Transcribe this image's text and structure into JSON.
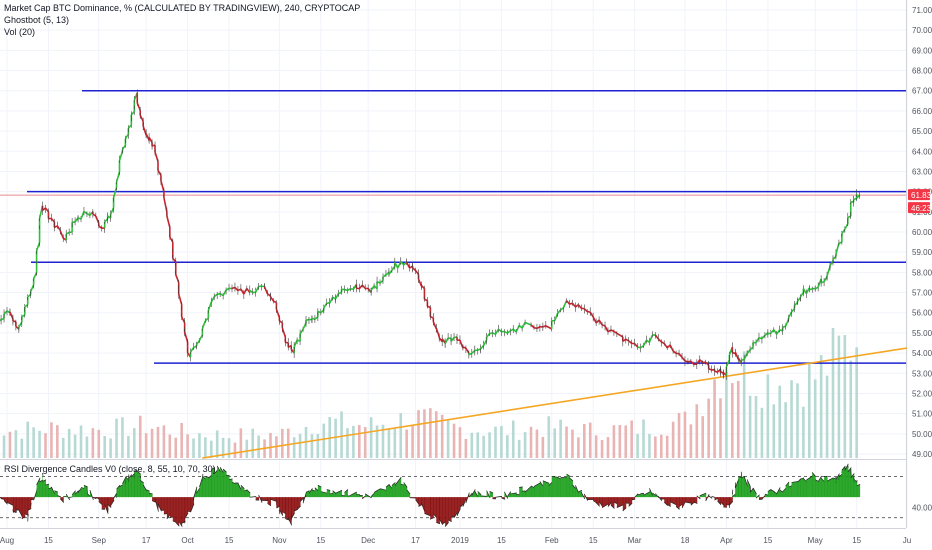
{
  "legend": {
    "title": "Market Cap BTC Dominance, % (CALCULATED BY TRADINGVIEW), 240, CRYPTOCAP",
    "indicator1": "Ghostbot (5, 13)",
    "indicator2": "Vol (20)",
    "rsi": "RSI Divergence Candles V0 (close, 8, 55, 10, 70, 30)"
  },
  "price_tags": {
    "last": "61.83",
    "countdown": "46:23",
    "colors": {
      "last": "#f23645",
      "countdown": "#f23645"
    }
  },
  "colors": {
    "level_line": "#1e22d2",
    "trend_line": "#f5a623",
    "bull": "#2fbf3a",
    "bear": "#c4252e",
    "vol_bull": "#b7d9d4",
    "vol_bear": "#e8b5b4",
    "rsi_bull": "#1a9e1a",
    "rsi_bear": "#8b0c0c"
  },
  "chart_data": [
    {
      "type": "line",
      "y_axis_ticks": [
        "71.00",
        "70.00",
        "69.00",
        "68.00",
        "67.00",
        "66.00",
        "65.00",
        "64.00",
        "63.00",
        "62.00",
        "61.00",
        "60.00",
        "59.00",
        "58.00",
        "57.00",
        "56.00",
        "55.00",
        "54.00",
        "53.00",
        "52.00",
        "51.00",
        "50.00",
        "49.00"
      ],
      "ylim": [
        48.8,
        71.2
      ],
      "x_axis_ticks": [
        "Aug",
        "15",
        "Sep",
        "17",
        "Oct",
        "15",
        "Nov",
        "15",
        "Dec",
        "17",
        "2019",
        "15",
        "Feb",
        "15",
        "Mar",
        "18",
        "Apr",
        "15",
        "May",
        "15",
        "Ju"
      ],
      "x_tick_dates": [
        "2018-08-01",
        "2018-08-15",
        "2018-09-01",
        "2018-09-17",
        "2018-10-01",
        "2018-10-15",
        "2018-11-01",
        "2018-11-15",
        "2018-12-01",
        "2018-12-17",
        "2019-01-01",
        "2019-01-15",
        "2019-02-01",
        "2019-02-15",
        "2019-03-01",
        "2019-03-18",
        "2019-04-01",
        "2019-04-15",
        "2019-05-01",
        "2019-05-15",
        "2019-06-01"
      ],
      "series": [
        {
          "values": [
            [
              "2018-07-25",
              55.0
            ],
            [
              "2018-07-29",
              55.5
            ],
            [
              "2018-08-02",
              56.0
            ],
            [
              "2018-08-05",
              55.2
            ],
            [
              "2018-08-08",
              56.4
            ],
            [
              "2018-08-11",
              58.0
            ],
            [
              "2018-08-13",
              61.3
            ],
            [
              "2018-08-17",
              60.5
            ],
            [
              "2018-08-21",
              59.6
            ],
            [
              "2018-08-25",
              60.7
            ],
            [
              "2018-08-30",
              61.0
            ],
            [
              "2018-09-03",
              60.2
            ],
            [
              "2018-09-06",
              61.2
            ],
            [
              "2018-09-09",
              64.0
            ],
            [
              "2018-09-12",
              65.3
            ],
            [
              "2018-09-14",
              66.9
            ],
            [
              "2018-09-17",
              64.8
            ],
            [
              "2018-09-20",
              64.3
            ],
            [
              "2018-09-23",
              62.0
            ],
            [
              "2018-09-26",
              59.5
            ],
            [
              "2018-09-28",
              57.5
            ],
            [
              "2018-09-30",
              55.5
            ],
            [
              "2018-10-02",
              53.8
            ],
            [
              "2018-10-06",
              54.9
            ],
            [
              "2018-10-10",
              56.8
            ],
            [
              "2018-10-16",
              57.2
            ],
            [
              "2018-10-22",
              57.0
            ],
            [
              "2018-10-27",
              57.3
            ],
            [
              "2018-10-31",
              56.5
            ],
            [
              "2018-11-03",
              54.8
            ],
            [
              "2018-11-06",
              54.0
            ],
            [
              "2018-11-10",
              55.5
            ],
            [
              "2018-11-14",
              55.8
            ],
            [
              "2018-11-18",
              56.5
            ],
            [
              "2018-11-22",
              57.0
            ],
            [
              "2018-11-27",
              57.4
            ],
            [
              "2018-12-02",
              57.0
            ],
            [
              "2018-12-06",
              57.6
            ],
            [
              "2018-12-10",
              58.3
            ],
            [
              "2018-12-14",
              58.5
            ],
            [
              "2018-12-18",
              57.9
            ],
            [
              "2018-12-21",
              56.6
            ],
            [
              "2018-12-24",
              55.2
            ],
            [
              "2018-12-27",
              54.5
            ],
            [
              "2018-12-31",
              54.8
            ],
            [
              "2019-01-04",
              54.0
            ],
            [
              "2019-01-08",
              54.2
            ],
            [
              "2019-01-12",
              55.0
            ],
            [
              "2019-01-18",
              55.1
            ],
            [
              "2019-01-25",
              55.4
            ],
            [
              "2019-02-01",
              55.2
            ],
            [
              "2019-02-06",
              56.6
            ],
            [
              "2019-02-12",
              56.2
            ],
            [
              "2019-02-18",
              55.4
            ],
            [
              "2019-02-25",
              54.8
            ],
            [
              "2019-03-02",
              54.3
            ],
            [
              "2019-03-08",
              54.9
            ],
            [
              "2019-03-14",
              54.1
            ],
            [
              "2019-03-20",
              53.6
            ],
            [
              "2019-03-26",
              53.4
            ],
            [
              "2019-03-30",
              53.2
            ],
            [
              "2019-04-01",
              52.9
            ],
            [
              "2019-04-03",
              54.3
            ],
            [
              "2019-04-06",
              53.5
            ],
            [
              "2019-04-10",
              54.3
            ],
            [
              "2019-04-15",
              55.0
            ],
            [
              "2019-04-20",
              55.1
            ],
            [
              "2019-04-24",
              56.2
            ],
            [
              "2019-04-27",
              57.0
            ],
            [
              "2019-05-01",
              57.2
            ],
            [
              "2019-05-05",
              57.8
            ],
            [
              "2019-05-08",
              58.8
            ],
            [
              "2019-05-12",
              60.4
            ],
            [
              "2019-05-14",
              61.5
            ],
            [
              "2019-05-16",
              61.83
            ]
          ]
        }
      ],
      "horizontal_levels": [
        67.0,
        62.0,
        58.5,
        53.5
      ],
      "trend_line": [
        [
          "2018-10-06",
          48.8
        ],
        [
          "2019-06-01",
          54.25
        ]
      ]
    },
    {
      "type": "bar",
      "name": "Vol (20)",
      "relative_levels": [
        [
          "2018-07-25",
          0.25
        ],
        [
          "2018-08-01",
          0.22
        ],
        [
          "2018-08-15",
          0.24
        ],
        [
          "2018-09-01",
          0.23
        ],
        [
          "2018-09-17",
          0.26
        ],
        [
          "2018-10-01",
          0.2
        ],
        [
          "2018-10-15",
          0.18
        ],
        [
          "2018-11-01",
          0.19
        ],
        [
          "2018-11-15",
          0.3
        ],
        [
          "2018-12-01",
          0.26
        ],
        [
          "2018-12-17",
          0.33
        ],
        [
          "2019-01-01",
          0.24
        ],
        [
          "2019-01-15",
          0.22
        ],
        [
          "2019-02-01",
          0.25
        ],
        [
          "2019-02-15",
          0.22
        ],
        [
          "2019-03-01",
          0.24
        ],
        [
          "2019-03-18",
          0.3
        ],
        [
          "2019-04-01",
          0.78
        ],
        [
          "2019-04-15",
          0.62
        ],
        [
          "2019-05-01",
          0.66
        ],
        [
          "2019-05-15",
          1.0
        ]
      ]
    },
    {
      "type": "area",
      "name": "RSI Divergence Candles V0",
      "y_axis_ticks": [
        "40.00"
      ],
      "levels": [
        70,
        30
      ],
      "ylim": [
        20,
        85
      ],
      "values": [
        [
          "2018-07-25",
          62
        ],
        [
          "2018-08-03",
          40
        ],
        [
          "2018-08-08",
          30
        ],
        [
          "2018-08-13",
          70
        ],
        [
          "2018-08-20",
          48
        ],
        [
          "2018-08-28",
          60
        ],
        [
          "2018-09-04",
          36
        ],
        [
          "2018-09-10",
          66
        ],
        [
          "2018-09-15",
          74
        ],
        [
          "2018-09-22",
          35
        ],
        [
          "2018-09-30",
          22
        ],
        [
          "2018-10-06",
          68
        ],
        [
          "2018-10-12",
          78
        ],
        [
          "2018-10-20",
          55
        ],
        [
          "2018-10-31",
          44
        ],
        [
          "2018-11-05",
          26
        ],
        [
          "2018-11-12",
          60
        ],
        [
          "2018-11-22",
          55
        ],
        [
          "2018-12-02",
          50
        ],
        [
          "2018-12-12",
          66
        ],
        [
          "2018-12-22",
          32
        ],
        [
          "2018-12-28",
          24
        ],
        [
          "2019-01-05",
          55
        ],
        [
          "2019-01-15",
          50
        ],
        [
          "2019-01-25",
          60
        ],
        [
          "2019-02-06",
          70
        ],
        [
          "2019-02-15",
          45
        ],
        [
          "2019-02-25",
          40
        ],
        [
          "2019-03-06",
          55
        ],
        [
          "2019-03-15",
          40
        ],
        [
          "2019-03-25",
          50
        ],
        [
          "2019-04-02",
          42
        ],
        [
          "2019-04-06",
          72
        ],
        [
          "2019-04-12",
          50
        ],
        [
          "2019-04-20",
          58
        ],
        [
          "2019-04-30",
          70
        ],
        [
          "2019-05-08",
          66
        ],
        [
          "2019-05-12",
          80
        ],
        [
          "2019-05-16",
          60
        ]
      ]
    }
  ]
}
